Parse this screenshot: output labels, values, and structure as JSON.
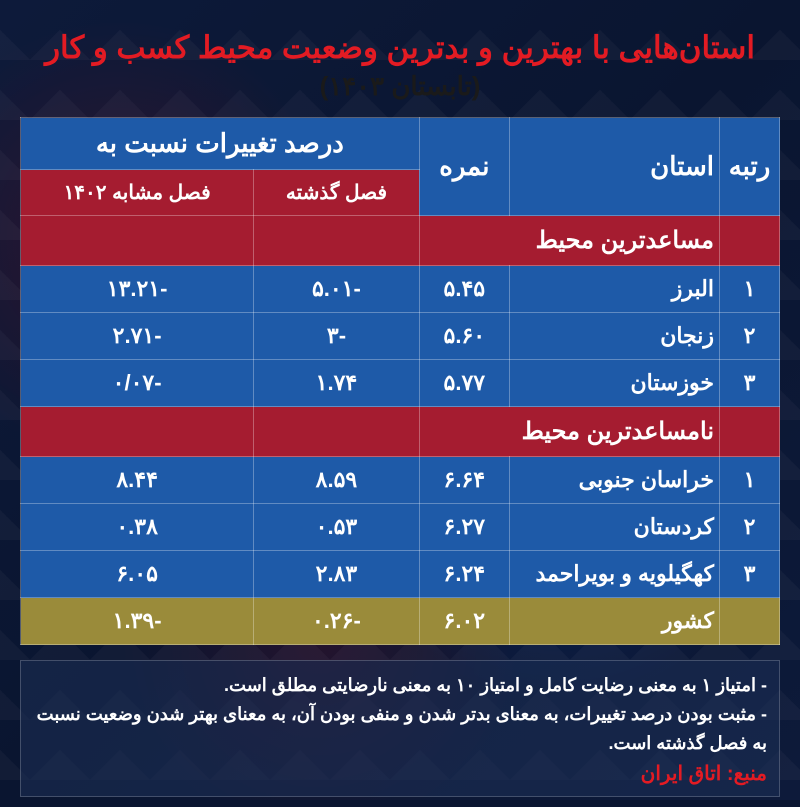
{
  "title": "استان‌هایی با بهترین و بدترین وضعیت محیط کسب و کار",
  "subtitle": "(تابستان ۱۴۰۳)",
  "colors": {
    "title": "#e31b23",
    "subtitle": "#1a1a1a",
    "header_bg": "#1e5aa8",
    "section_bg": "#a51c30",
    "data_bg": "#1e5aa8",
    "country_bg": "#9a8b3a",
    "source": "#e31b23",
    "text": "#ffffff",
    "page_bg": "#0a1530"
  },
  "table": {
    "type": "table",
    "columns": [
      "رتبه",
      "استان",
      "نمره",
      "درصد تغییرات نسبت به"
    ],
    "sub_columns": [
      "فصل گذشته",
      "فصل مشابه ۱۴۰۲"
    ],
    "column_widths": [
      "60px",
      "210px",
      "auto",
      "auto",
      "auto"
    ],
    "fontsize_header": 26,
    "fontsize_subheader": 20,
    "fontsize_data": 22,
    "fontsize_section": 24
  },
  "sections": {
    "best": {
      "label": "مساعدترین محیط",
      "rows": [
        {
          "rank": "۱",
          "province": "البرز",
          "score": "۵.۴۵",
          "chg_prev": "-۵.۰۱",
          "chg_year": "-۱۳.۲۱"
        },
        {
          "rank": "۲",
          "province": "زنجان",
          "score": "۵.۶۰",
          "chg_prev": "-۳",
          "chg_year": "-۲.۷۱"
        },
        {
          "rank": "۳",
          "province": "خوزستان",
          "score": "۵.۷۷",
          "chg_prev": "۱.۷۴",
          "chg_year": "-۰/۰۷"
        }
      ]
    },
    "worst": {
      "label": "نامساعدترین  محیط",
      "rows": [
        {
          "rank": "۱",
          "province": "خراسان جنوبی",
          "score": "۶.۶۴",
          "chg_prev": "۸.۵۹",
          "chg_year": "۸.۴۴"
        },
        {
          "rank": "۲",
          "province": "کردستان",
          "score": "۶.۲۷",
          "chg_prev": "۰.۵۳",
          "chg_year": "۰.۳۸"
        },
        {
          "rank": "۳",
          "province": "کهگیلویه و بویراحمد",
          "score": "۶.۲۴",
          "chg_prev": "۲.۸۳",
          "chg_year": "۶.۰۵"
        }
      ]
    },
    "country": {
      "label": "کشور",
      "score": "۶.۰۲",
      "chg_prev": "-۰.۲۶",
      "chg_year": "-۱.۳۹"
    }
  },
  "notes": {
    "line1": "- امتیاز ۱ به معنی رضایت کامل و امتیاز ۱۰ به معنی نارضایتی مطلق است.",
    "line2": "- مثبت بودن درصد تغییرات، به معنای بدتر شدن و منفی بودن آن، به معنای بهتر شدن وضعیت نسبت به فصل گذشته است.",
    "source": "منبع: اتاق ایران"
  }
}
